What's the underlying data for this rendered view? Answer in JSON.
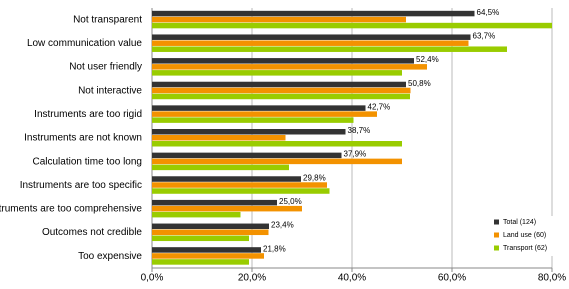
{
  "chart_data": {
    "type": "hbar",
    "categories": [
      "Not transparent",
      "Low communication value",
      "Not user friendly",
      "Not interactive",
      "Instruments are too rigid",
      "Instruments are not known",
      "Calculation time too long",
      "Instruments are too specific",
      "Instruments are too comprehensive",
      "Outcomes not credible",
      "Too expensive"
    ],
    "series": [
      {
        "name": "Total (124)",
        "color": "#333333",
        "values": [
          64.5,
          63.7,
          52.4,
          50.8,
          42.7,
          38.7,
          37.9,
          29.8,
          25.0,
          23.4,
          21.8
        ],
        "value_labels": [
          "64,5%",
          "63,7%",
          "52,4%",
          "50,8%",
          "42,7%",
          "38,7%",
          "37,9%",
          "29,8%",
          "25,0%",
          "23,4%",
          "21,8%"
        ]
      },
      {
        "name": "Land use (60)",
        "color": "#f39200",
        "values": [
          50.8,
          63.3,
          55.0,
          51.7,
          45.0,
          26.7,
          50.0,
          35.0,
          30.0,
          23.3,
          22.4
        ]
      },
      {
        "name": "Transport (62)",
        "color": "#99cc00",
        "values": [
          80.0,
          71.0,
          50.0,
          51.6,
          40.3,
          50.0,
          27.4,
          35.5,
          17.7,
          19.4,
          19.4
        ]
      }
    ],
    "xlim": [
      0,
      80
    ],
    "xticks": [
      {
        "value": 0,
        "label": "0,0%"
      },
      {
        "value": 20,
        "label": "20,0%"
      },
      {
        "value": 40,
        "label": "40,0%"
      },
      {
        "value": 60,
        "label": "60,0%"
      },
      {
        "value": 80,
        "label": "80,0%"
      }
    ],
    "grid": true,
    "legend": "lower-right"
  }
}
